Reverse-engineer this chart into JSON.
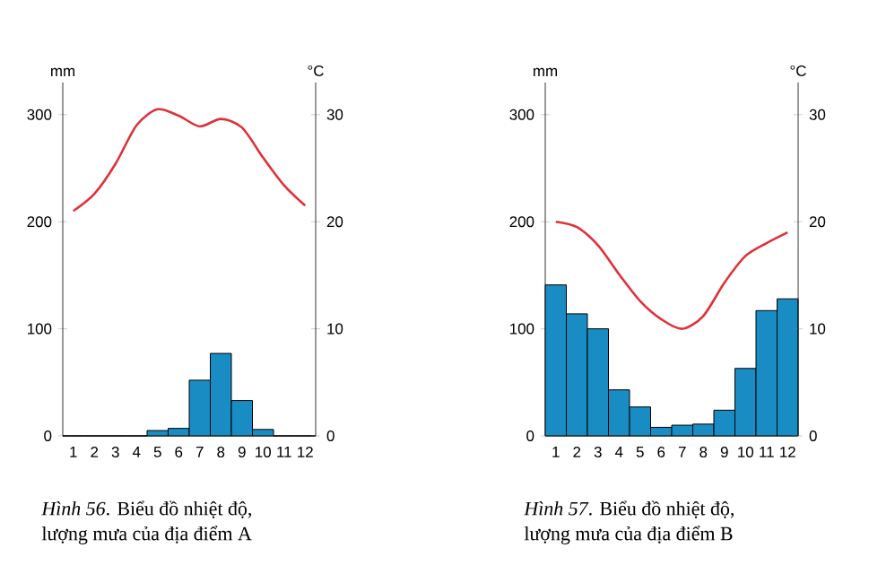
{
  "chart_data": [
    {
      "type": "bar",
      "categories": [
        "1",
        "2",
        "3",
        "4",
        "5",
        "6",
        "7",
        "8",
        "9",
        "10",
        "11",
        "12"
      ],
      "series": [
        {
          "color": "#1a8cc4",
          "values": [
            0,
            0,
            0,
            0,
            5,
            7,
            52,
            77,
            33,
            6,
            0,
            0
          ]
        },
        {
          "type": "line",
          "axis": "y2",
          "color": "#e0303a",
          "values": [
            21,
            22.6,
            25.4,
            29,
            30.5,
            29.9,
            28.9,
            29.6,
            28.8,
            26,
            23.4,
            21.5
          ]
        }
      ],
      "ylim": [
        0,
        330
      ],
      "yticks": [
        0,
        100,
        200,
        300
      ],
      "y2lim": [
        0,
        33
      ],
      "y2ticks": [
        0,
        10,
        20,
        30
      ],
      "ylabel": "mm",
      "y2label": "°C",
      "annotations": [
        "*Hình 56*. Biểu đồ nhiệt độ, lượng mưa của địa điểm A"
      ]
    },
    {
      "type": "bar",
      "categories": [
        "1",
        "2",
        "3",
        "4",
        "5",
        "6",
        "7",
        "8",
        "9",
        "10",
        "11",
        "12"
      ],
      "series": [
        {
          "color": "#1a8cc4",
          "values": [
            141,
            114,
            100,
            43,
            27,
            8,
            10,
            11,
            24,
            63,
            117,
            128
          ]
        },
        {
          "type": "line",
          "axis": "y2",
          "color": "#e0303a",
          "values": [
            20,
            19.5,
            17.8,
            15.1,
            12.6,
            10.9,
            10,
            11.2,
            14.3,
            16.8,
            18,
            19
          ]
        }
      ],
      "ylim": [
        0,
        330
      ],
      "yticks": [
        0,
        100,
        200,
        300
      ],
      "y2lim": [
        0,
        33
      ],
      "y2ticks": [
        0,
        10,
        20,
        30
      ],
      "ylabel": "mm",
      "y2label": "°C",
      "annotations": [
        "*Hình 57*. Biểu đồ nhiệt độ, lượng mưa của địa điểm B"
      ]
    }
  ]
}
